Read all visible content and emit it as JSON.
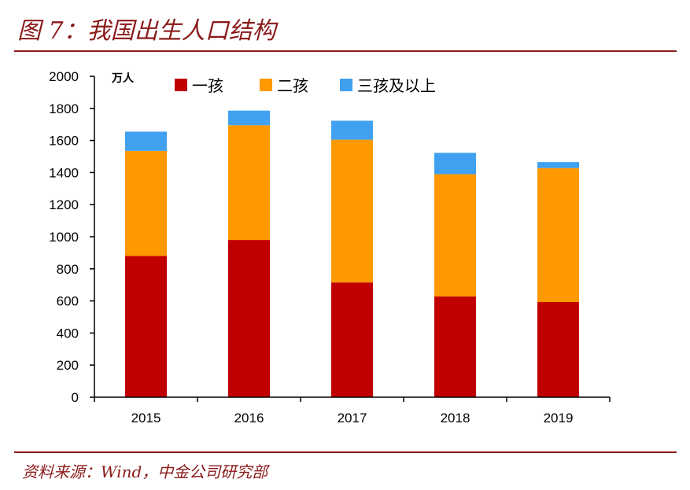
{
  "figure": {
    "title": "图 7：我国出生人口结构",
    "source": "资料来源：Wind，中金公司研究部"
  },
  "chart_data": {
    "type": "bar",
    "stacked": true,
    "unit_label": "万人",
    "categories": [
      "2015",
      "2016",
      "2017",
      "2018",
      "2019"
    ],
    "series": [
      {
        "name": "一孩",
        "color": "#C00000",
        "values": [
          880,
          980,
          715,
          628,
          593
        ]
      },
      {
        "name": "二孩",
        "color": "#FF9900",
        "values": [
          655,
          715,
          890,
          762,
          835
        ]
      },
      {
        "name": "三孩及以上",
        "color": "#3FA1F0",
        "values": [
          120,
          91,
          118,
          133,
          37
        ]
      }
    ],
    "ylim": [
      0,
      2000
    ],
    "yticks": [
      "0",
      "200",
      "400",
      "600",
      "800",
      "1000",
      "1200",
      "1400",
      "1600",
      "1800",
      "2000"
    ],
    "grid": false,
    "legend_position": "top"
  }
}
